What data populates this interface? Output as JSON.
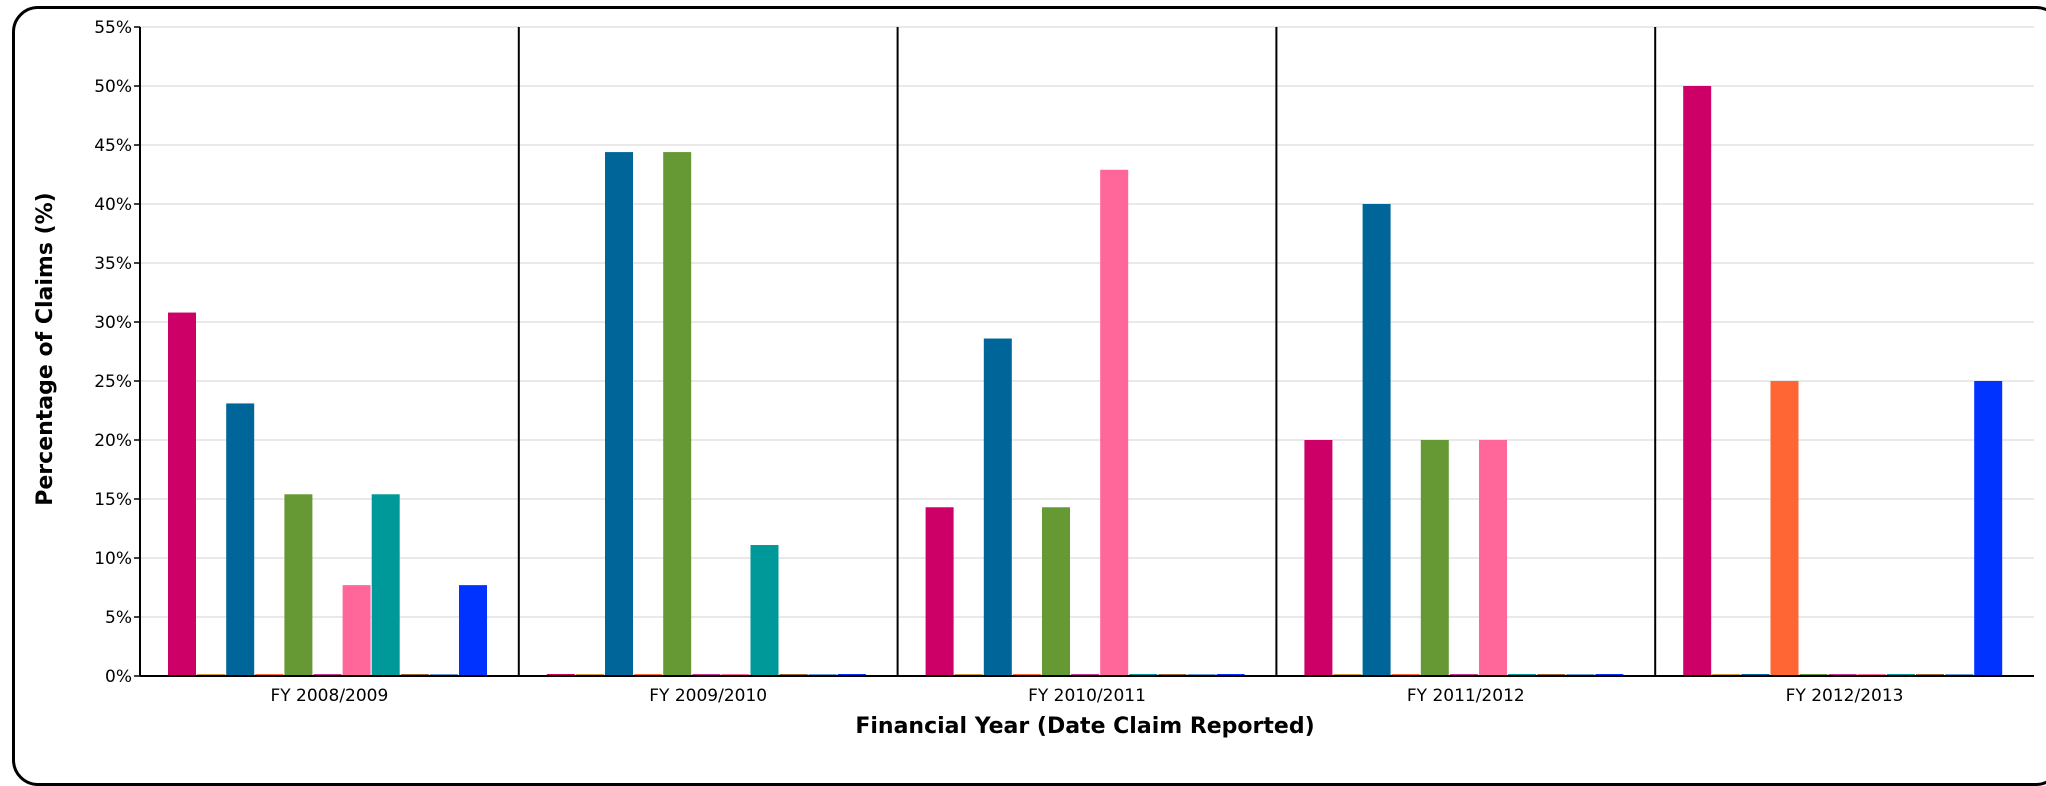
{
  "chart_data": {
    "type": "bar",
    "title": "",
    "xlabel": "Financial Year (Date Claim Reported)",
    "ylabel": "Percentage of Claims (%)",
    "ylim": [
      0,
      55
    ],
    "y_ticks": [
      "0%",
      "5%",
      "10%",
      "15%",
      "20%",
      "25%",
      "30%",
      "35%",
      "40%",
      "45%",
      "50%",
      "55%"
    ],
    "grid": true,
    "legend": "none",
    "categories": [
      "FY 2008/2009",
      "FY 2009/2010",
      "FY 2010/2011",
      "FY 2011/2012",
      "FY 2012/2013"
    ],
    "series": [
      {
        "color": "#cc0066",
        "values": [
          30.8,
          0,
          14.3,
          20,
          50
        ]
      },
      {
        "color": "#cc9933",
        "values": [
          0,
          0,
          0,
          0,
          0
        ]
      },
      {
        "color": "#006699",
        "values": [
          23.1,
          44.4,
          28.6,
          40,
          0
        ]
      },
      {
        "color": "#ff6633",
        "values": [
          0,
          0,
          0,
          0,
          25
        ]
      },
      {
        "color": "#669933",
        "values": [
          15.4,
          44.4,
          14.3,
          20,
          0
        ]
      },
      {
        "color": "#cc3399",
        "values": [
          0,
          0,
          0,
          0,
          0
        ]
      },
      {
        "color": "#ff6699",
        "values": [
          7.7,
          0,
          42.9,
          20,
          0
        ]
      },
      {
        "color": "#009999",
        "values": [
          15.4,
          11.1,
          0,
          0,
          0
        ]
      },
      {
        "color": "#996633",
        "values": [
          0,
          0,
          0,
          0,
          0
        ]
      },
      {
        "color": "#6699cc",
        "values": [
          0,
          0,
          0,
          0,
          0
        ]
      },
      {
        "color": "#0033ff",
        "values": [
          7.7,
          0,
          0,
          0,
          25
        ]
      }
    ]
  }
}
